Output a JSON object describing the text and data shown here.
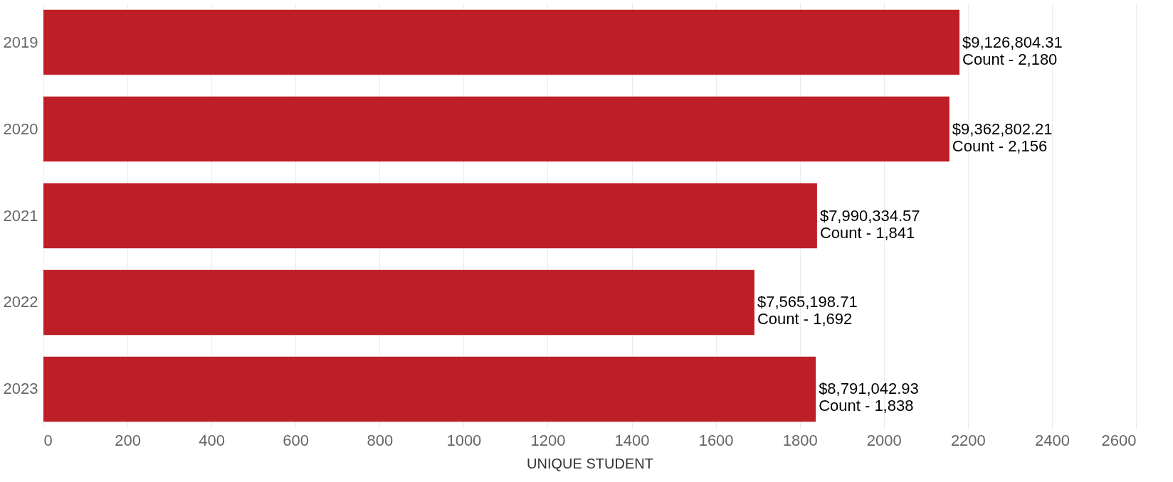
{
  "chart_data": {
    "type": "bar",
    "orientation": "horizontal",
    "xlabel": "UNIQUE STUDENT",
    "categories": [
      "2019",
      "2020",
      "2021",
      "2022",
      "2023"
    ],
    "values": [
      2180,
      2156,
      1841,
      1692,
      1838
    ],
    "color": "#be1e26",
    "annotations": [
      {
        "text": "$9,126,804.31\nCount - 2,180",
        "x": 2180,
        "y": "2019"
      },
      {
        "text": "$9,362,802.21\nCount - 2,156",
        "x": 2156,
        "y": "2020"
      },
      {
        "text": "$7,990,334.57\nCount - 1,841",
        "x": 1841,
        "y": "2021"
      },
      {
        "text": "$7,565,198.71\nCount - 1,692",
        "x": 1692,
        "y": "2022"
      },
      {
        "text": "$8,791,042.93\nCount - 1,838",
        "x": 1838,
        "y": "2023"
      }
    ],
    "xlim": [
      0,
      2600
    ],
    "xticks": [
      0,
      200,
      400,
      600,
      800,
      1000,
      1200,
      1400,
      1600,
      1800,
      2000,
      2200,
      2400,
      2600
    ],
    "grid": "x"
  }
}
